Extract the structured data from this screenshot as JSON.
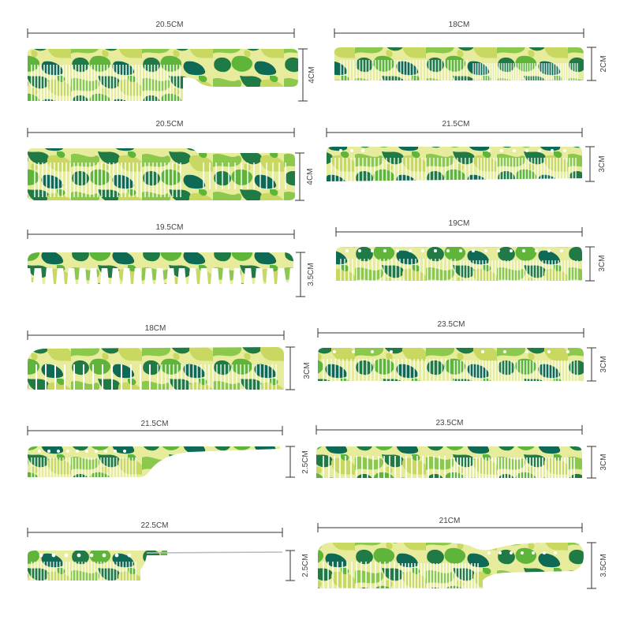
{
  "combs": [
    {
      "id": "c1",
      "length": "20.5CM",
      "height": "4CM"
    },
    {
      "id": "c2",
      "length": "18CM",
      "height": "2CM"
    },
    {
      "id": "c3",
      "length": "20.5CM",
      "height": "4CM"
    },
    {
      "id": "c4",
      "length": "21.5CM",
      "height": "3CM"
    },
    {
      "id": "c5",
      "length": "19.5CM",
      "height": "3.5CM"
    },
    {
      "id": "c6",
      "length": "19CM",
      "height": "3CM"
    },
    {
      "id": "c7",
      "length": "18CM",
      "height": "3CM"
    },
    {
      "id": "c8",
      "length": "23.5CM",
      "height": "3CM"
    },
    {
      "id": "c9",
      "length": "21.5CM",
      "height": "2.5CM"
    },
    {
      "id": "c10",
      "length": "23.5CM",
      "height": "3CM"
    },
    {
      "id": "c11",
      "length": "22.5CM",
      "height": "2.5CM"
    },
    {
      "id": "c12",
      "length": "21CM",
      "height": "3.5CM"
    }
  ],
  "colors": {
    "camo_light": "#e8eca0",
    "camo_yellow": "#c9d860",
    "camo_green": "#5fb53a",
    "camo_dark": "#1f7a45",
    "camo_teal": "#0f6a55",
    "dimension_line": "#333333",
    "label_text": "#444444"
  }
}
